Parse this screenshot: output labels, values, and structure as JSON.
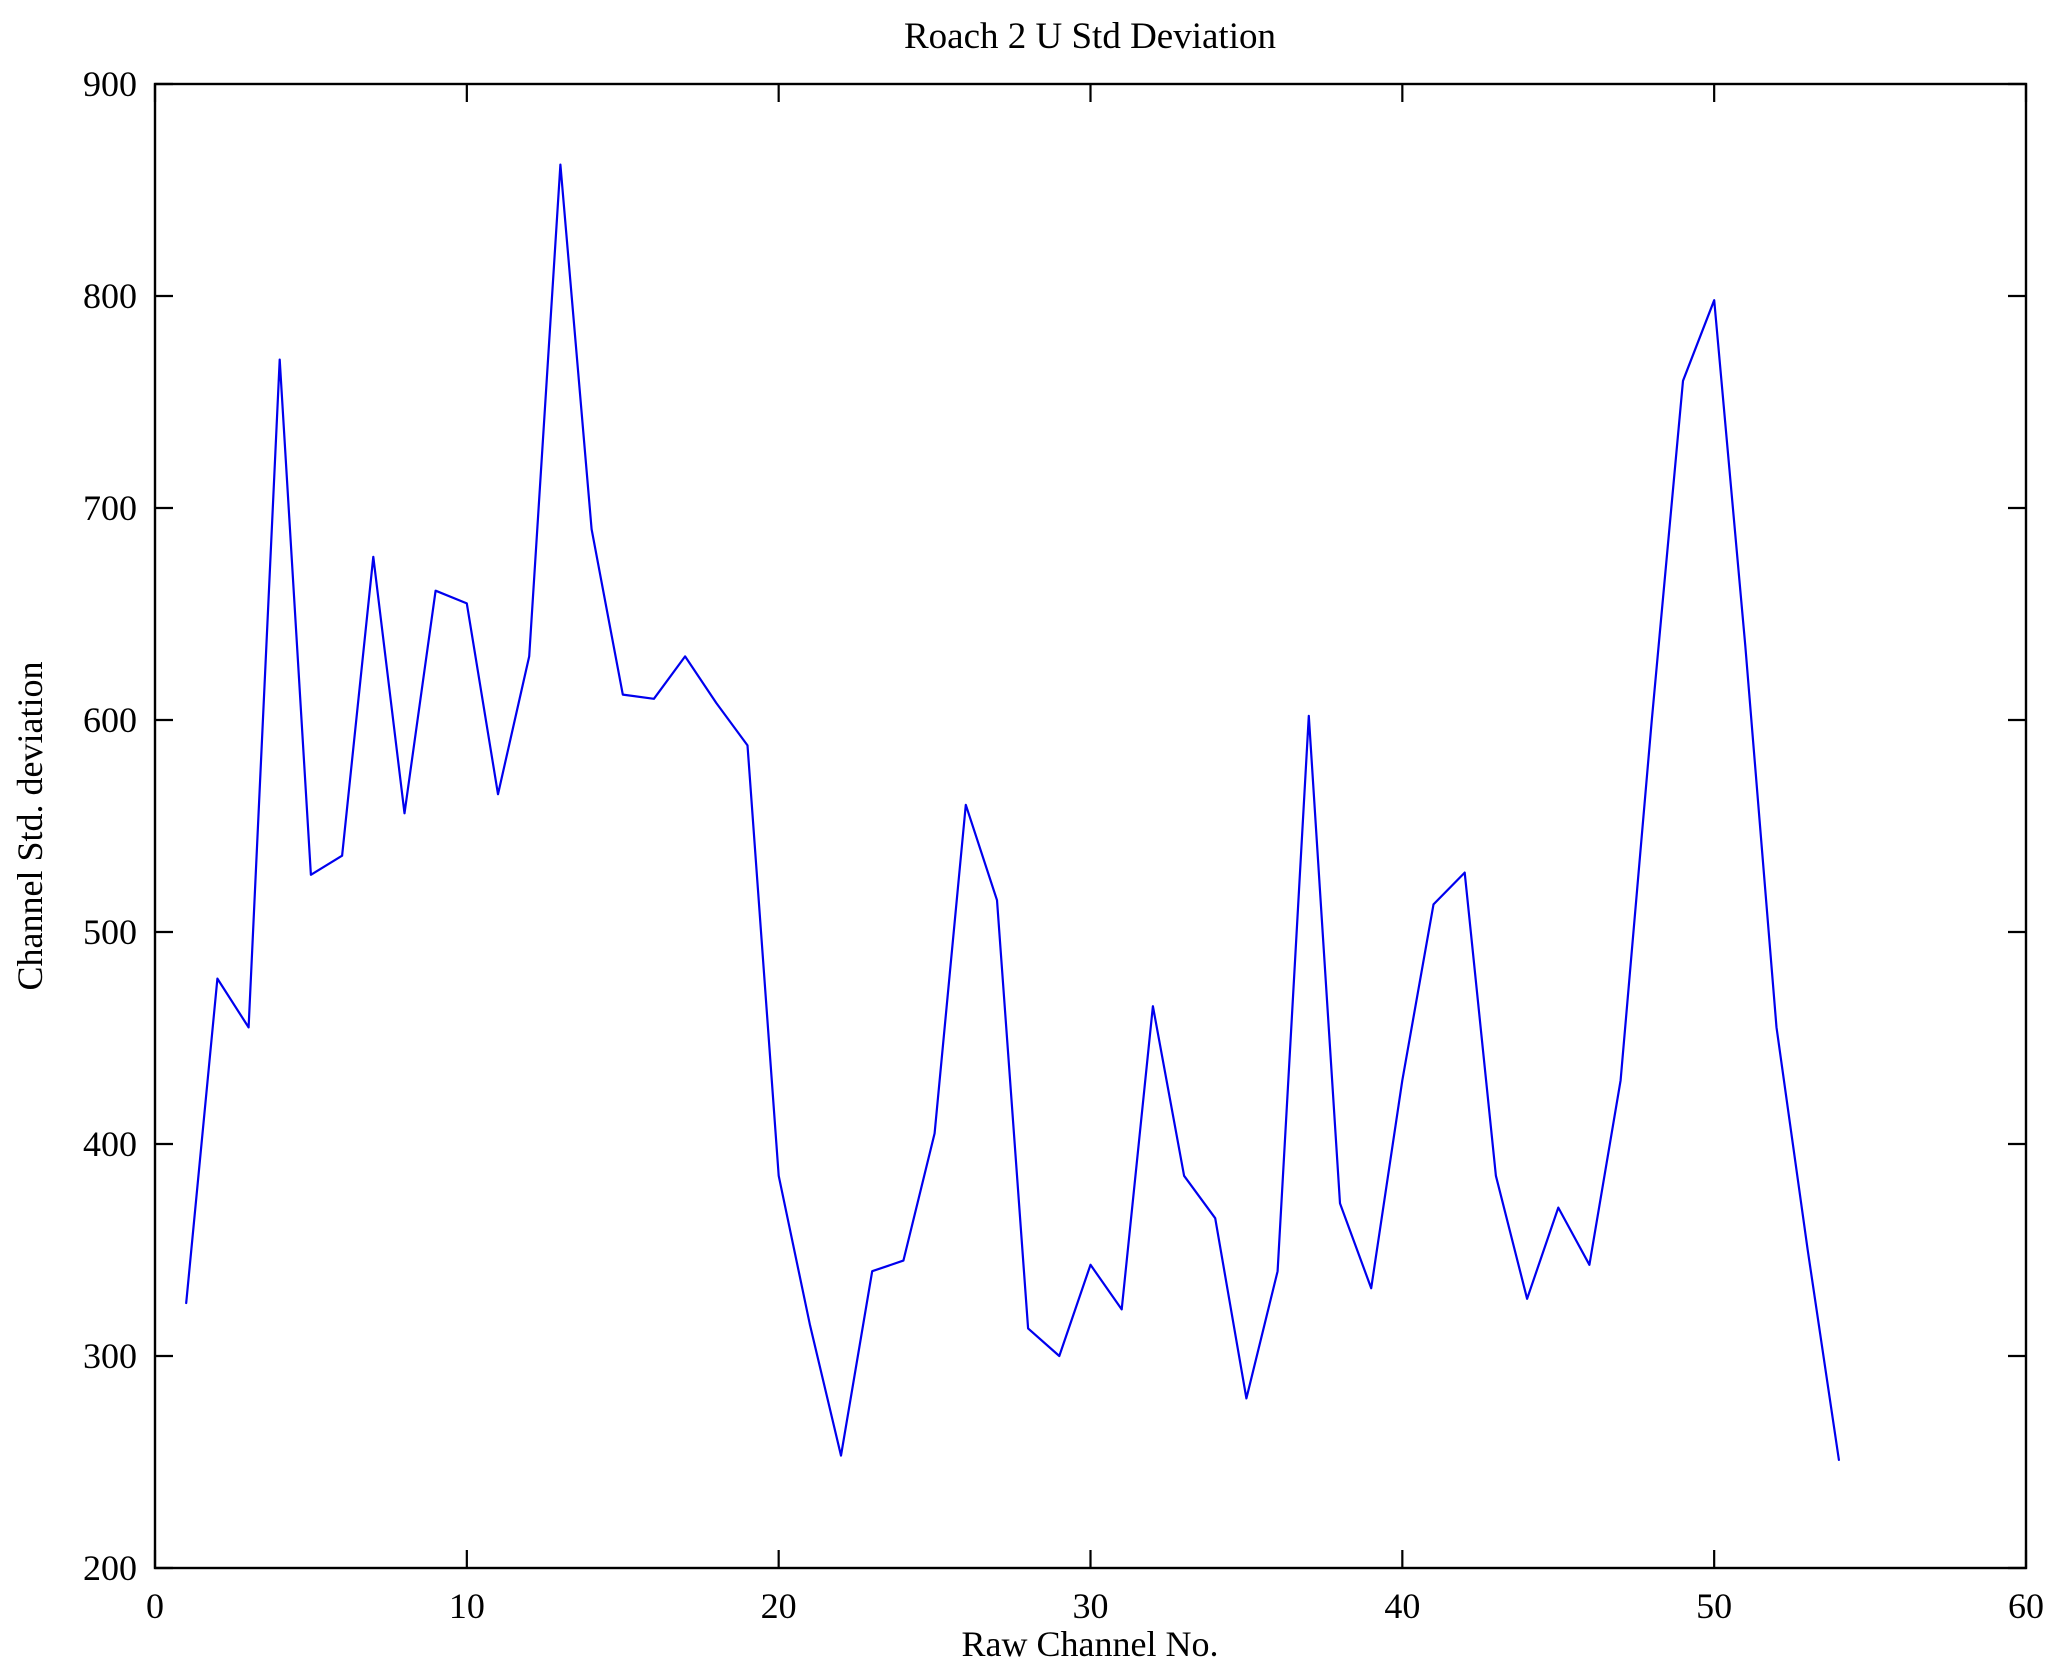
{
  "chart_data": {
    "type": "line",
    "title": "Roach 2 U Std Deviation",
    "xlabel": "Raw Channel No.",
    "ylabel": "Channel Std. deviation",
    "xlim": [
      0,
      60
    ],
    "ylim": [
      200,
      900
    ],
    "xticks": [
      0,
      10,
      20,
      30,
      40,
      50,
      60
    ],
    "yticks": [
      200,
      300,
      400,
      500,
      600,
      700,
      800,
      900
    ],
    "grid": false,
    "legend": "none",
    "line_color": "#0000ee",
    "axis_color": "#000000",
    "background_color": "#ffffff",
    "x": [
      1,
      2,
      3,
      4,
      5,
      6,
      7,
      8,
      9,
      10,
      11,
      12,
      13,
      14,
      15,
      16,
      17,
      18,
      19,
      20,
      21,
      22,
      23,
      24,
      25,
      26,
      27,
      28,
      29,
      30,
      31,
      32,
      33,
      34,
      35,
      36,
      37,
      38,
      39,
      40,
      41,
      42,
      43,
      44,
      45,
      46,
      47,
      48,
      49,
      50,
      51,
      52,
      53,
      54
    ],
    "y": [
      325,
      478,
      455,
      770,
      527,
      536,
      677,
      556,
      661,
      655,
      565,
      630,
      862,
      690,
      612,
      610,
      630,
      608,
      588,
      385,
      315,
      253,
      340,
      345,
      405,
      560,
      515,
      313,
      300,
      343,
      322,
      465,
      385,
      365,
      280,
      340,
      602,
      372,
      332,
      430,
      513,
      528,
      385,
      327,
      370,
      343,
      430,
      600,
      760,
      798,
      635,
      455,
      350,
      251
    ]
  }
}
